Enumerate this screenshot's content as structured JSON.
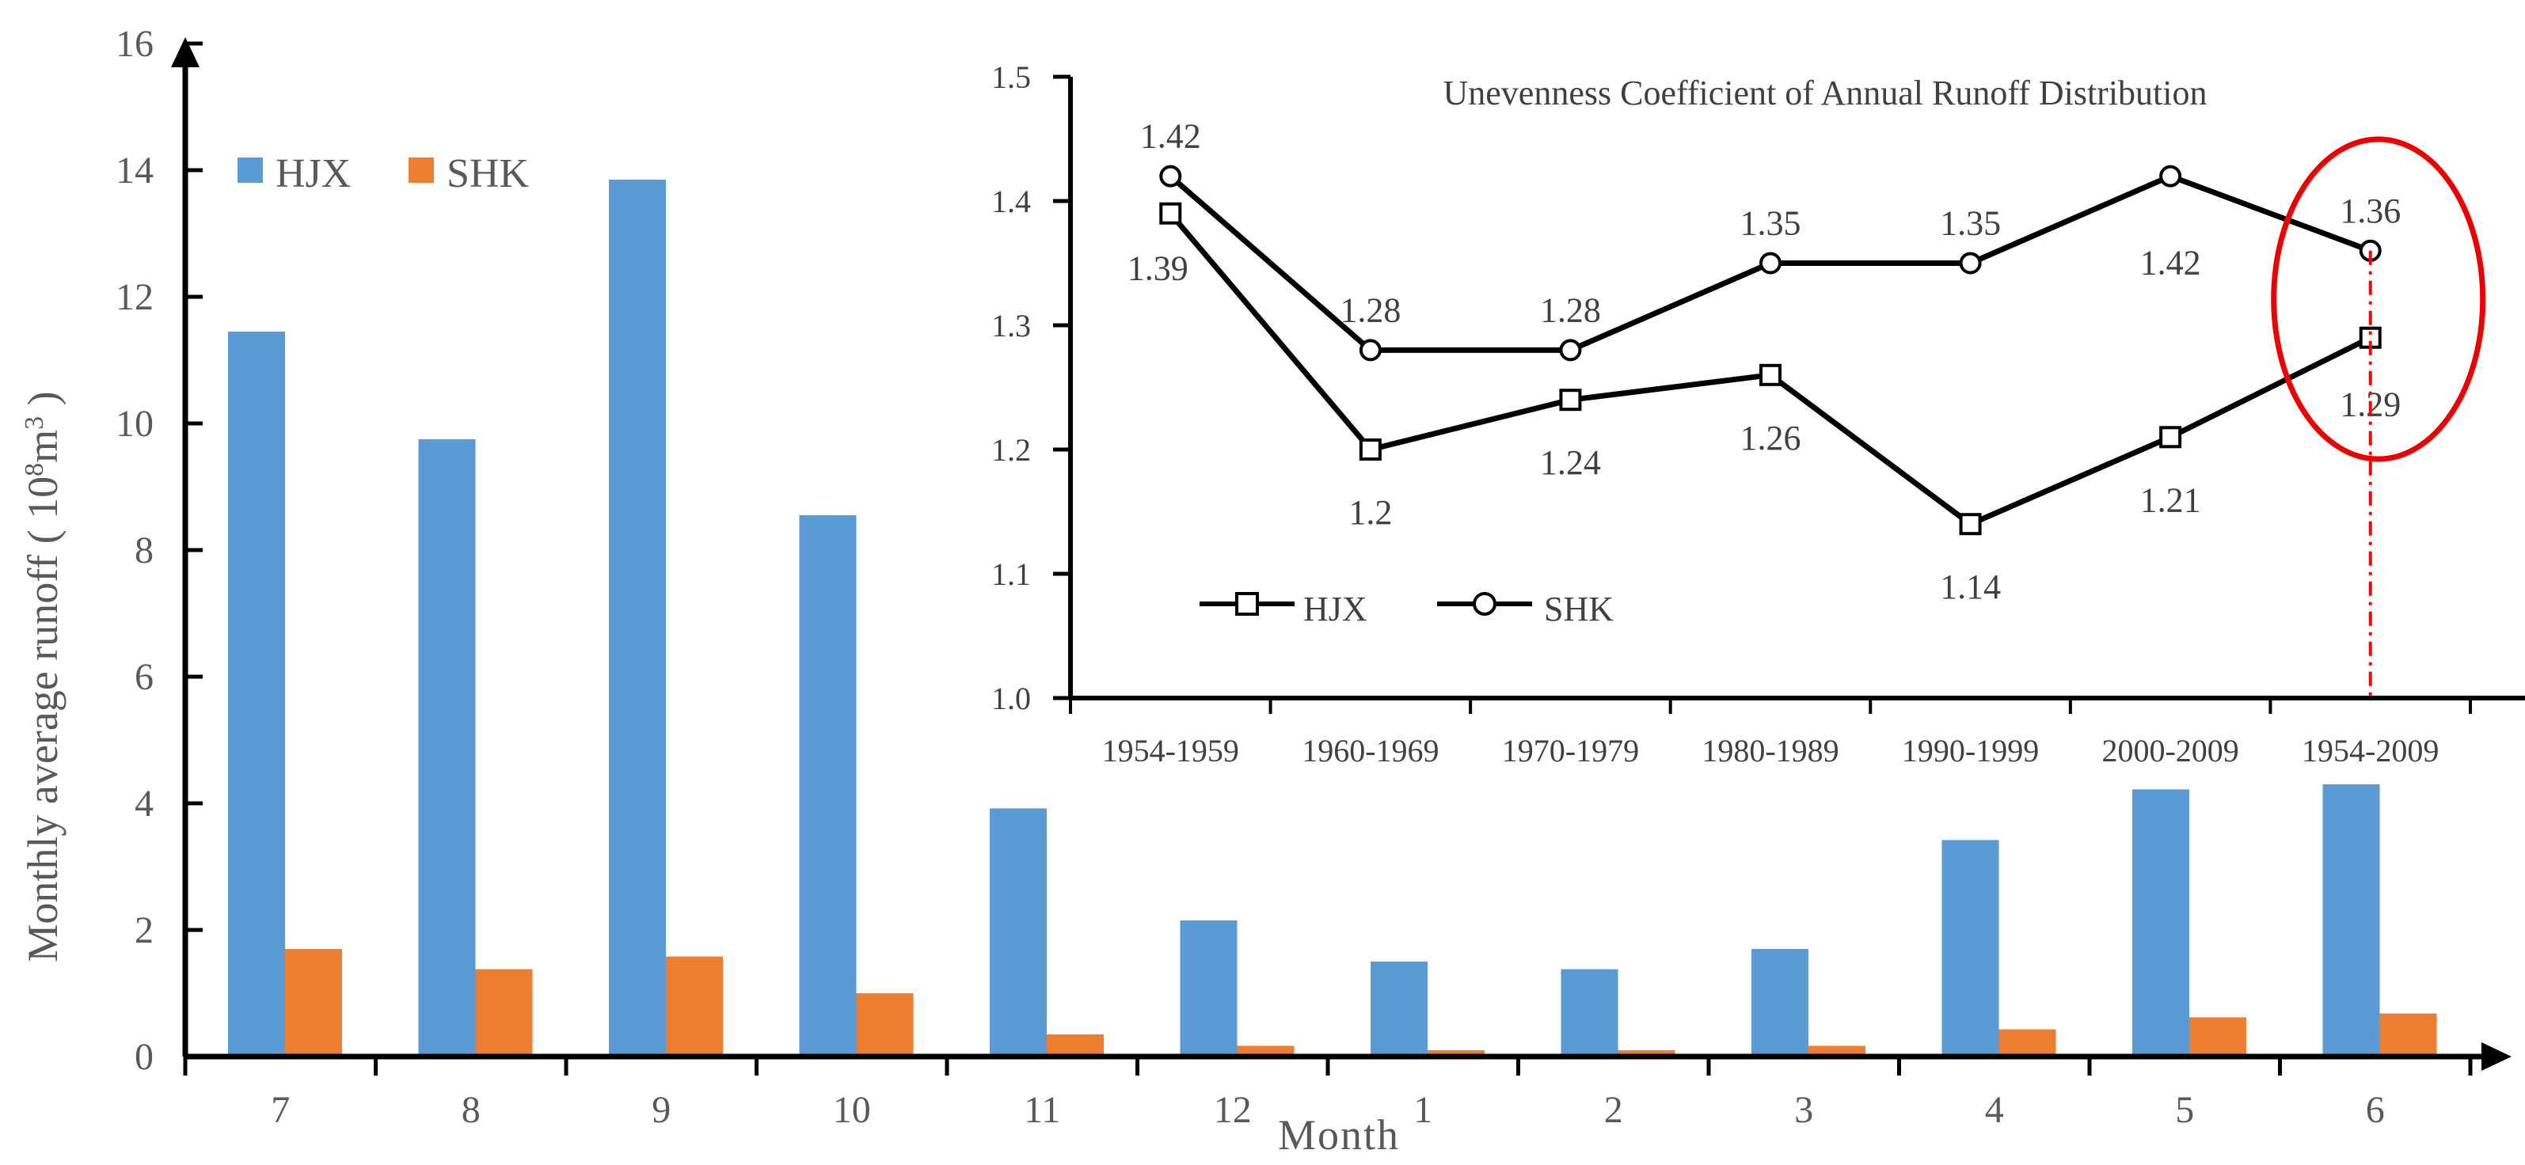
{
  "chart_data": [
    {
      "type": "bar",
      "title": "",
      "xlabel": "Month",
      "ylabel": "Monthly average runoff ( 10",
      "ylabel_sup1": "8",
      "ylabel_mid": "m",
      "ylabel_sup2": "3",
      "ylabel_end": " )",
      "ylim": [
        0,
        16
      ],
      "yticks": [
        "0",
        "2",
        "4",
        "6",
        "8",
        "10",
        "12",
        "14",
        "16"
      ],
      "categories": [
        "7",
        "8",
        "9",
        "10",
        "11",
        "12",
        "1",
        "2",
        "3",
        "4",
        "5",
        "6"
      ],
      "legend_position": "top-left",
      "series": [
        {
          "name": "HJX",
          "color": "#5B9BD5",
          "values": [
            11.45,
            9.75,
            13.85,
            8.55,
            3.92,
            2.15,
            1.5,
            1.38,
            1.7,
            3.42,
            4.22,
            4.3
          ]
        },
        {
          "name": "SHK",
          "color": "#ED7D31",
          "values": [
            1.7,
            1.38,
            1.58,
            1.0,
            0.35,
            0.17,
            0.1,
            0.1,
            0.17,
            0.43,
            0.62,
            0.68
          ]
        }
      ]
    },
    {
      "type": "line",
      "title": "Unevenness Coefficient of Annual Runoff Distribution",
      "xlabel": "",
      "ylabel": "",
      "ylim": [
        1.0,
        1.5
      ],
      "yticks": [
        "1.0",
        "1.1",
        "1.2",
        "1.3",
        "1.4",
        "1.5"
      ],
      "categories": [
        "1954-1959",
        "1960-1969",
        "1970-1979",
        "1980-1989",
        "1990-1999",
        "2000-2009",
        "1954-2009"
      ],
      "legend_position": "bottom-left",
      "highlight": "1954-2009",
      "series": [
        {
          "name": "HJX",
          "marker": "square",
          "values": [
            1.39,
            1.2,
            1.24,
            1.26,
            1.14,
            1.21,
            1.29
          ],
          "labels": [
            "1.39",
            "1.2",
            "1.24",
            "1.26",
            "1.14",
            "1.21",
            "1.29"
          ]
        },
        {
          "name": "SHK",
          "marker": "circle",
          "values": [
            1.42,
            1.28,
            1.28,
            1.35,
            1.35,
            1.42,
            1.36
          ],
          "labels": [
            "1.42",
            "1.28",
            "1.28",
            "1.35",
            "1.35",
            "1.42",
            "1.36"
          ]
        }
      ]
    }
  ]
}
